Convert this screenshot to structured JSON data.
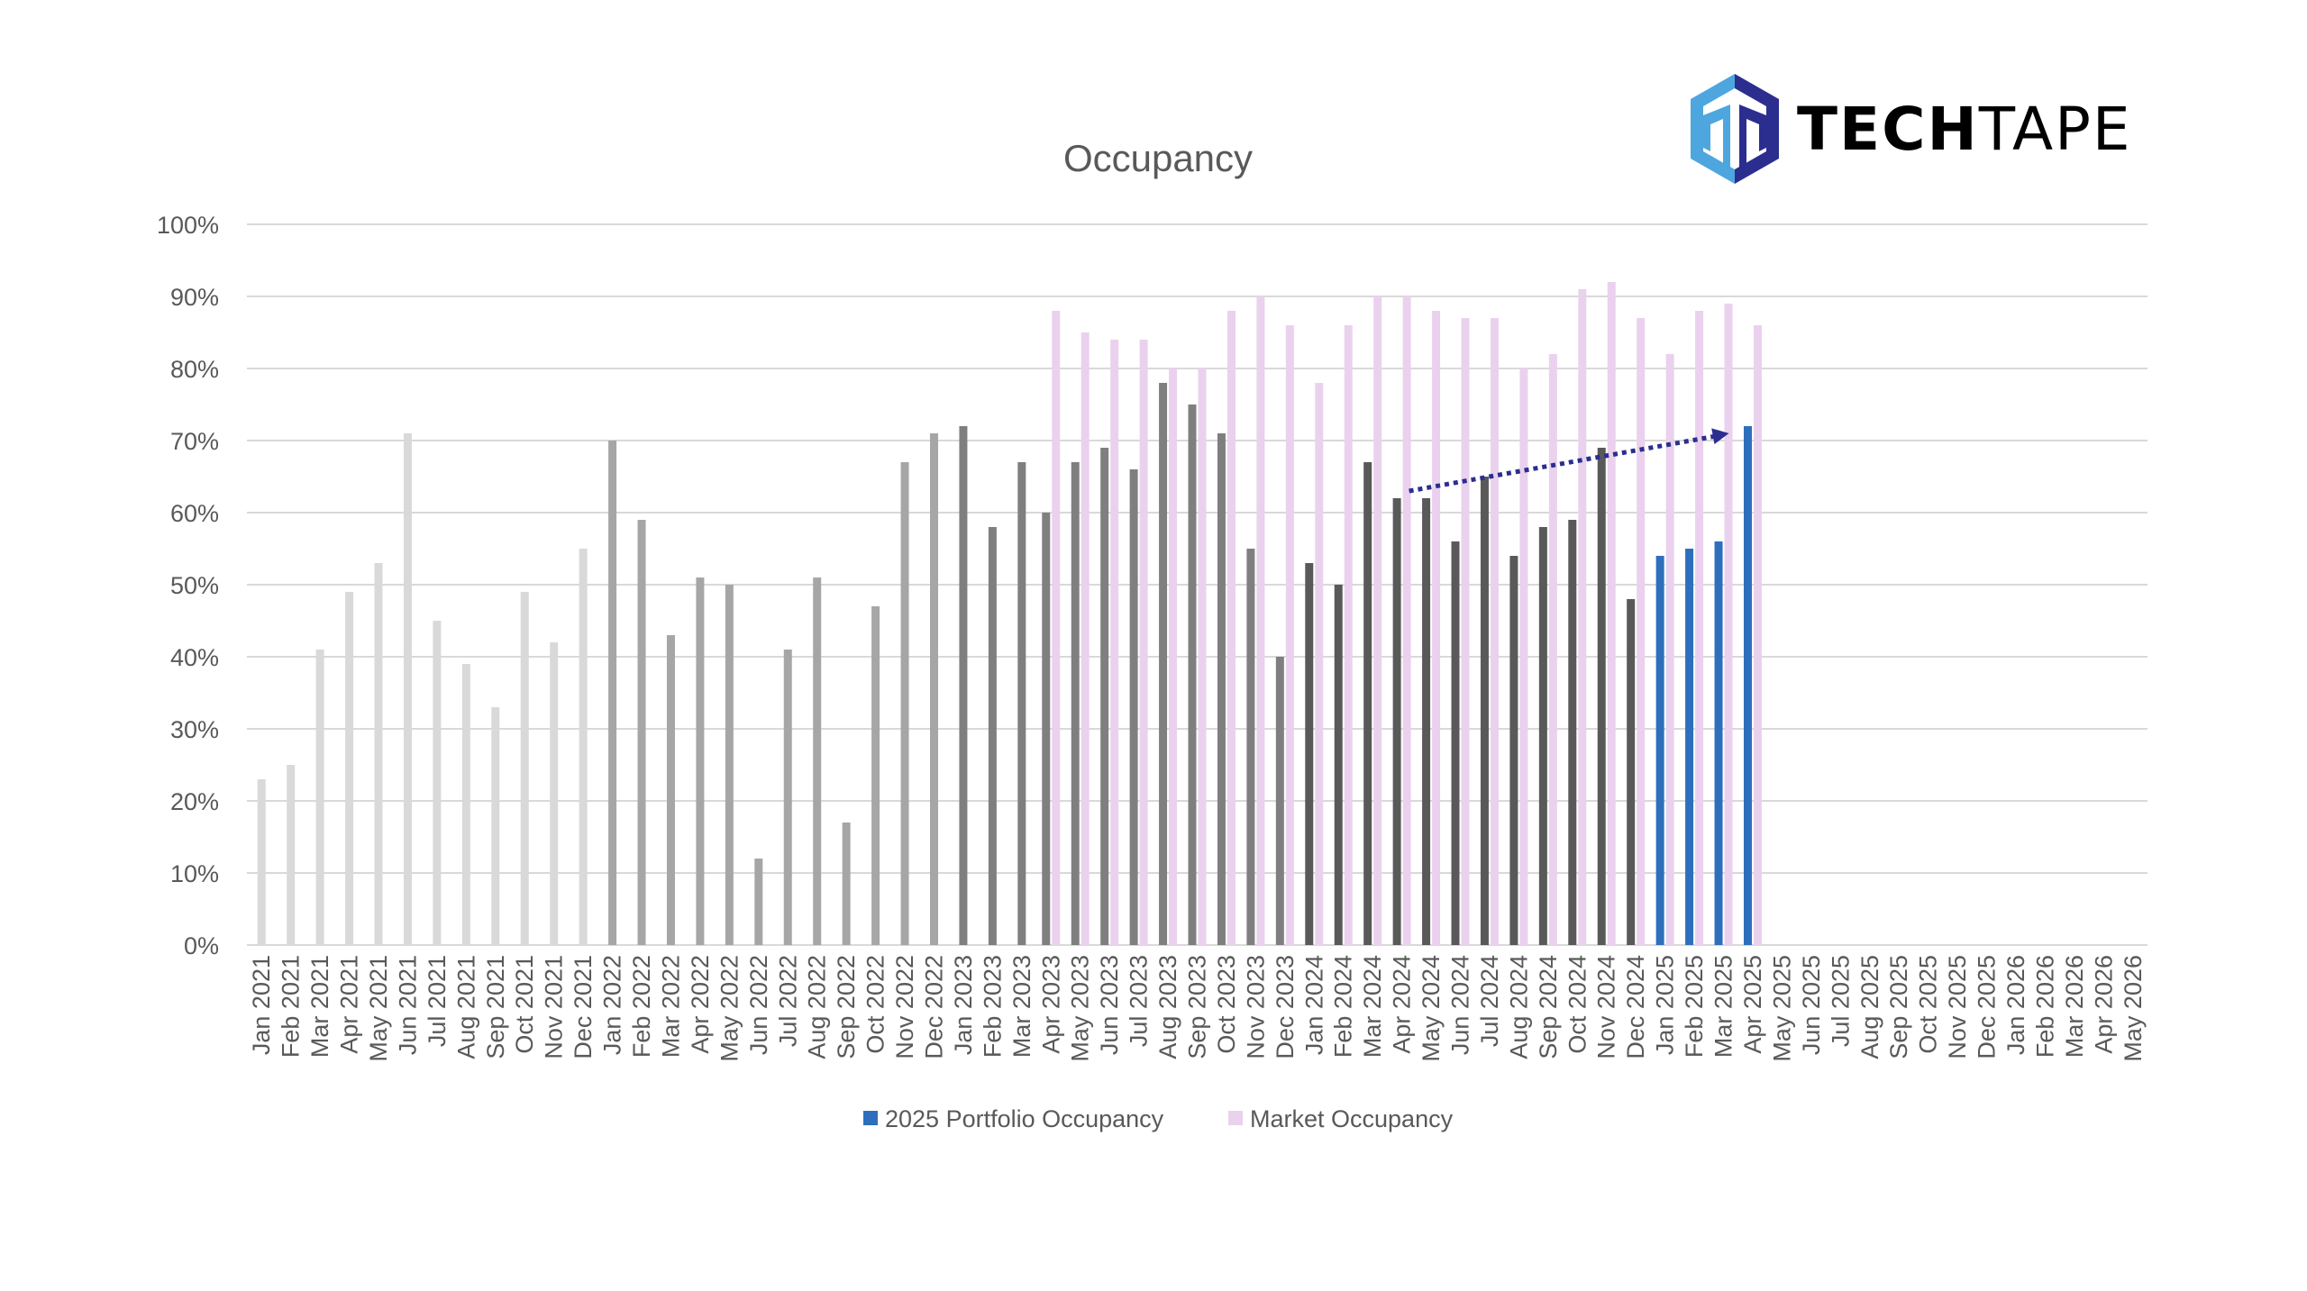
{
  "logo": {
    "text_bold": "TECH",
    "text_light": "TAPE",
    "colors": {
      "light": "#4ea6df",
      "dark": "#2b2e8f"
    }
  },
  "chart_data": {
    "type": "bar",
    "title": "Occupancy",
    "xlabel": "",
    "ylabel": "",
    "ylim": [
      0,
      100
    ],
    "yticks": [
      "0%",
      "10%",
      "20%",
      "30%",
      "40%",
      "50%",
      "60%",
      "70%",
      "80%",
      "90%",
      "100%"
    ],
    "grid": true,
    "legend_position": "bottom",
    "categories": [
      "Jan 2021",
      "Feb 2021",
      "Mar 2021",
      "Apr 2021",
      "May 2021",
      "Jun 2021",
      "Jul 2021",
      "Aug 2021",
      "Sep 2021",
      "Oct 2021",
      "Nov 2021",
      "Dec 2021",
      "Jan 2022",
      "Feb 2022",
      "Mar 2022",
      "Apr 2022",
      "May 2022",
      "Jun 2022",
      "Jul 2022",
      "Aug 2022",
      "Sep 2022",
      "Oct 2022",
      "Nov 2022",
      "Dec 2022",
      "Jan 2023",
      "Feb 2023",
      "Mar 2023",
      "Apr 2023",
      "May 2023",
      "Jun 2023",
      "Jul 2023",
      "Aug 2023",
      "Sep 2023",
      "Oct 2023",
      "Nov 2023",
      "Dec 2023",
      "Jan 2024",
      "Feb 2024",
      "Mar 2024",
      "Apr 2024",
      "May 2024",
      "Jun 2024",
      "Jul 2024",
      "Aug 2024",
      "Sep 2024",
      "Oct 2024",
      "Nov 2024",
      "Dec 2024",
      "Jan 2025",
      "Feb 2025",
      "Mar 2025",
      "Apr 2025",
      "May 2025",
      "Jun 2025",
      "Jul 2025",
      "Aug 2025",
      "Sep 2025",
      "Oct 2025",
      "Nov 2025",
      "Dec 2025",
      "Jan 2026",
      "Feb 2026",
      "Mar 2026",
      "Apr 2026",
      "May 2026"
    ],
    "series": [
      {
        "name": "2025 Portfolio Occupancy",
        "color": "#2e6fbd",
        "year_colors": {
          "2021": "#d9d9d9",
          "2022": "#a6a6a6",
          "2023": "#7f7f7f",
          "2024": "#595959",
          "2025": "#2e6fbd"
        },
        "values": [
          23,
          25,
          41,
          49,
          53,
          71,
          45,
          39,
          33,
          49,
          42,
          55,
          70,
          59,
          43,
          51,
          50,
          12,
          41,
          51,
          17,
          47,
          67,
          71,
          72,
          58,
          67,
          60,
          67,
          69,
          66,
          78,
          75,
          71,
          55,
          40,
          53,
          50,
          67,
          62,
          62,
          56,
          65,
          54,
          58,
          59,
          69,
          48,
          54,
          55,
          56,
          72,
          null,
          null,
          null,
          null,
          null,
          null,
          null,
          null,
          null,
          null,
          null,
          null,
          null
        ]
      },
      {
        "name": "Market Occupancy",
        "color": "#ead1ee",
        "values": [
          null,
          null,
          null,
          null,
          null,
          null,
          null,
          null,
          null,
          null,
          null,
          null,
          null,
          null,
          null,
          null,
          null,
          null,
          null,
          null,
          null,
          null,
          null,
          null,
          null,
          null,
          null,
          88,
          85,
          84,
          84,
          80,
          80,
          88,
          90,
          86,
          78,
          86,
          90,
          90,
          88,
          87,
          87,
          80,
          82,
          91,
          92,
          87,
          82,
          88,
          89,
          86,
          null,
          null,
          null,
          null,
          null,
          null,
          null,
          null,
          null,
          null,
          null,
          null,
          null
        ]
      }
    ],
    "annotations": [
      {
        "type": "trend-arrow",
        "from": {
          "x": "Apr 2024",
          "y": 63
        },
        "to": {
          "x": "Mar 2025",
          "y": 71
        },
        "color": "#2b2e8f",
        "style": "dotted"
      }
    ]
  }
}
